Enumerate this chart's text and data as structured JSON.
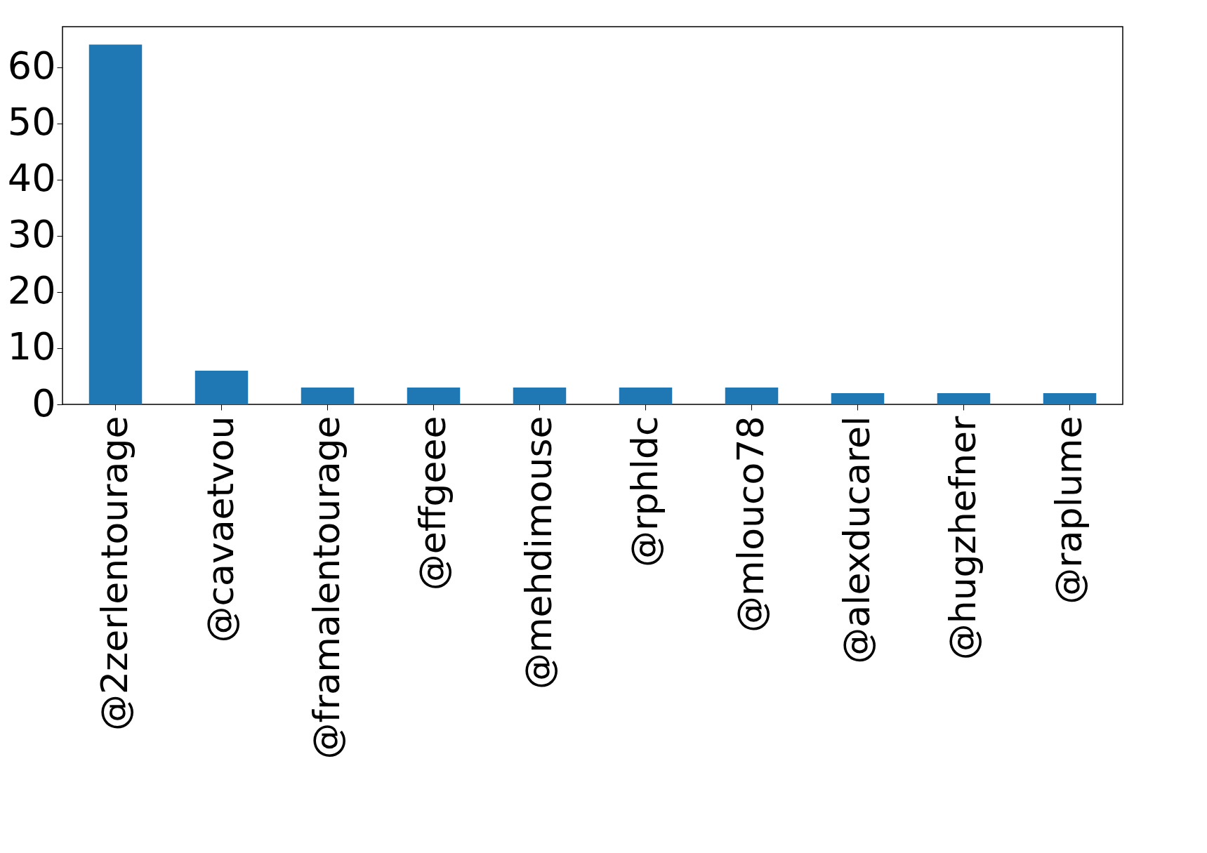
{
  "chart_data": {
    "type": "bar",
    "categories": [
      "@2zerlentourage",
      "@cavaetvou",
      "@framalentourage",
      "@effgeee",
      "@mehdimouse",
      "@rphldc",
      "@mlouco78",
      "@alexducarel",
      "@hugzhefner",
      "@raplume"
    ],
    "values": [
      64,
      6,
      3,
      3,
      3,
      3,
      3,
      2,
      2,
      2
    ],
    "color": "#1f77b4",
    "ylim": [
      0,
      67.2
    ],
    "yticks": [
      0,
      10,
      20,
      30,
      40,
      50,
      60
    ],
    "grid": false
  }
}
